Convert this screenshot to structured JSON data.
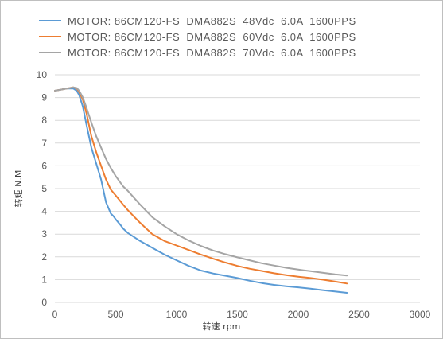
{
  "chart_data": {
    "type": "line",
    "title": "",
    "xlabel": "转速 rpm",
    "ylabel": "转矩 N.M",
    "xlim": [
      0,
      3000
    ],
    "ylim": [
      0,
      10
    ],
    "xticks": [
      0,
      500,
      1000,
      1500,
      2000,
      2500,
      3000
    ],
    "yticks": [
      0,
      1,
      2,
      3,
      4,
      5,
      6,
      7,
      8,
      9,
      10
    ],
    "grid": "horizontal",
    "legend_position": "top-left",
    "series": [
      {
        "name": "MOTOR: 86CM120-FS  DMA882S  48Vdc  6.0A  1600PPS",
        "color": "#5b9bd5",
        "x": [
          0,
          50,
          100,
          150,
          180,
          200,
          230,
          260,
          300,
          340,
          380,
          420,
          460,
          480,
          500,
          540,
          560,
          600,
          700,
          800,
          900,
          1000,
          1100,
          1200,
          1300,
          1400,
          1500,
          1600,
          1700,
          1800,
          1900,
          2000,
          2100,
          2200,
          2300,
          2400
        ],
        "y": [
          9.3,
          9.35,
          9.4,
          9.4,
          9.3,
          9.1,
          8.6,
          7.8,
          6.8,
          6.1,
          5.4,
          4.4,
          3.9,
          3.8,
          3.65,
          3.4,
          3.25,
          3.05,
          2.7,
          2.4,
          2.1,
          1.85,
          1.6,
          1.4,
          1.27,
          1.17,
          1.07,
          0.95,
          0.85,
          0.77,
          0.71,
          0.66,
          0.6,
          0.54,
          0.48,
          0.42
        ]
      },
      {
        "name": "MOTOR: 86CM120-FS  DMA882S  60Vdc  6.0A  1600PPS",
        "color": "#ed7d31",
        "x": [
          0,
          50,
          100,
          150,
          180,
          200,
          230,
          260,
          300,
          340,
          380,
          420,
          460,
          500,
          560,
          600,
          700,
          800,
          900,
          1000,
          1100,
          1200,
          1300,
          1400,
          1500,
          1600,
          1700,
          1800,
          1900,
          2000,
          2100,
          2200,
          2300,
          2400
        ],
        "y": [
          9.3,
          9.35,
          9.4,
          9.45,
          9.4,
          9.25,
          8.9,
          8.3,
          7.3,
          6.6,
          6.0,
          5.4,
          4.95,
          4.7,
          4.3,
          4.05,
          3.5,
          3.0,
          2.7,
          2.5,
          2.3,
          2.1,
          1.92,
          1.75,
          1.6,
          1.48,
          1.38,
          1.28,
          1.2,
          1.13,
          1.07,
          1.0,
          0.92,
          0.83
        ]
      },
      {
        "name": "MOTOR: 86CM120-FS  DMA882S  70Vdc  6.0A  1600PPS",
        "color": "#a5a5a5",
        "x": [
          0,
          50,
          100,
          150,
          180,
          200,
          230,
          260,
          300,
          340,
          380,
          420,
          460,
          500,
          560,
          600,
          700,
          800,
          900,
          1000,
          1100,
          1200,
          1300,
          1400,
          1500,
          1600,
          1700,
          1800,
          1900,
          2000,
          2100,
          2200,
          2300,
          2400
        ],
        "y": [
          9.3,
          9.35,
          9.4,
          9.45,
          9.42,
          9.3,
          9.0,
          8.55,
          7.9,
          7.3,
          6.8,
          6.3,
          5.9,
          5.55,
          5.1,
          4.9,
          4.3,
          3.75,
          3.35,
          3.0,
          2.72,
          2.48,
          2.28,
          2.12,
          1.98,
          1.85,
          1.72,
          1.62,
          1.52,
          1.44,
          1.37,
          1.3,
          1.23,
          1.18
        ]
      }
    ]
  }
}
